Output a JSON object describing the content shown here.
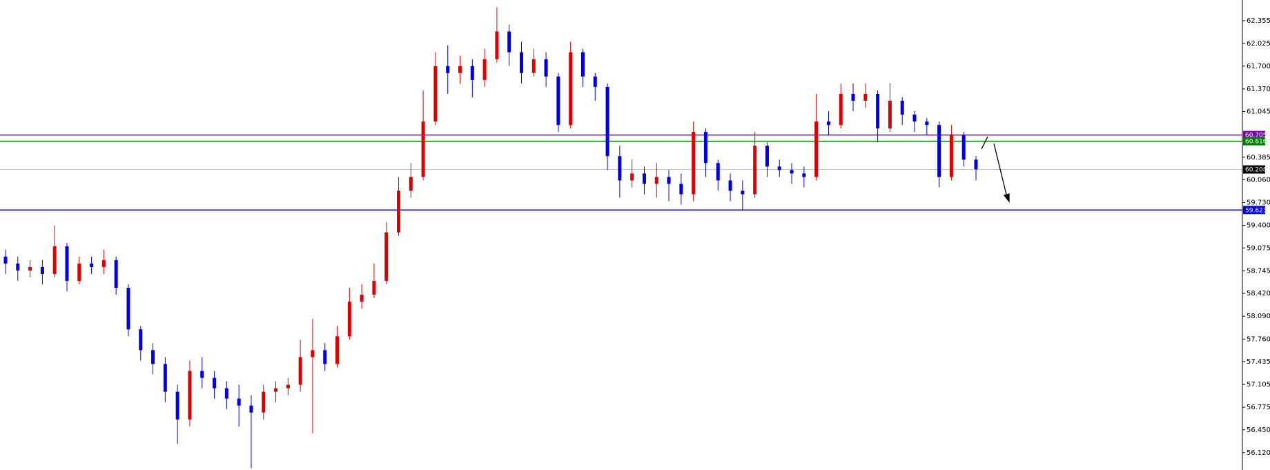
{
  "chart_data": {
    "type": "candlestick",
    "up_color": "#e00000",
    "down_color": "#0000e6",
    "ylim": [
      55.87,
      62.654
    ],
    "yticks": [
      {
        "value": 62.355,
        "label": "62.355"
      },
      {
        "value": 62.025,
        "label": "62.025"
      },
      {
        "value": 61.7,
        "label": "61.700"
      },
      {
        "value": 61.37,
        "label": "61.370"
      },
      {
        "value": 61.045,
        "label": "61.045"
      },
      {
        "value": 60.385,
        "label": "60.385"
      },
      {
        "value": 60.06,
        "label": "60.060"
      },
      {
        "value": 59.73,
        "label": "59.730"
      },
      {
        "value": 59.4,
        "label": "59.400"
      },
      {
        "value": 59.075,
        "label": "59.075"
      },
      {
        "value": 58.745,
        "label": "58.745"
      },
      {
        "value": 58.42,
        "label": "58.420"
      },
      {
        "value": 58.09,
        "label": "58.090"
      },
      {
        "value": 57.76,
        "label": "57.760"
      },
      {
        "value": 57.435,
        "label": "57.435"
      },
      {
        "value": 57.105,
        "label": "57.105"
      },
      {
        "value": 56.775,
        "label": "56.775"
      },
      {
        "value": 56.45,
        "label": "56.450"
      },
      {
        "value": 56.12,
        "label": "56.120"
      }
    ],
    "levels": [
      {
        "value": 60.705,
        "color": "#8000c0"
      },
      {
        "value": 60.616,
        "color": "#008000"
      },
      {
        "value": 60.208,
        "color": "#c0c0c0",
        "label_color": "#000000"
      },
      {
        "value": 59.623,
        "color": "#0000e6"
      }
    ],
    "open": [
      58.95,
      58.85,
      58.75,
      58.8,
      58.7,
      59.1,
      58.6,
      58.85,
      58.8,
      58.9,
      58.5,
      57.9,
      57.6,
      57.4,
      57.0,
      56.6,
      57.3,
      57.2,
      57.05,
      56.9,
      56.8,
      56.7,
      57.0,
      57.05,
      57.1,
      57.5,
      57.6,
      57.4,
      57.8,
      58.3,
      58.4,
      58.6,
      59.3,
      59.9,
      60.1,
      60.9,
      61.7,
      61.6,
      61.7,
      61.5,
      61.8,
      62.2,
      61.9,
      61.6,
      61.8,
      61.55,
      60.85,
      61.9,
      61.55,
      61.4,
      60.4,
      60.05,
      60.15,
      60.0,
      60.1,
      60.0,
      59.85,
      60.75,
      60.3,
      60.05,
      59.9,
      59.85,
      60.55,
      60.25,
      60.2,
      60.15,
      60.1,
      60.9,
      60.85,
      61.3,
      61.2,
      61.3,
      60.8,
      61.2,
      61.0,
      60.9,
      60.85,
      60.1,
      60.7,
      60.35
    ],
    "high": [
      59.05,
      58.95,
      58.9,
      58.9,
      59.4,
      59.15,
      58.95,
      58.95,
      59.05,
      58.95,
      58.55,
      57.95,
      57.7,
      57.5,
      57.1,
      57.45,
      57.5,
      57.3,
      57.15,
      57.1,
      56.95,
      57.1,
      57.15,
      57.2,
      57.75,
      58.05,
      57.7,
      57.95,
      58.5,
      58.55,
      58.85,
      59.45,
      60.1,
      60.3,
      61.35,
      61.9,
      62.0,
      61.85,
      61.8,
      61.95,
      62.55,
      62.3,
      62.05,
      61.95,
      61.9,
      61.6,
      62.05,
      61.95,
      61.6,
      61.45,
      60.55,
      60.35,
      60.25,
      60.3,
      60.2,
      60.15,
      60.9,
      60.8,
      60.35,
      60.15,
      60.05,
      60.75,
      60.6,
      60.35,
      60.3,
      60.25,
      61.3,
      61.05,
      61.45,
      61.45,
      61.45,
      61.35,
      61.45,
      61.25,
      61.05,
      60.95,
      60.9,
      60.85,
      60.75,
      60.4
    ],
    "low": [
      58.7,
      58.6,
      58.65,
      58.55,
      58.65,
      58.45,
      58.55,
      58.7,
      58.7,
      58.4,
      57.8,
      57.45,
      57.25,
      56.85,
      56.25,
      56.5,
      57.05,
      56.9,
      56.75,
      56.5,
      55.9,
      56.6,
      56.85,
      56.95,
      57.0,
      56.4,
      57.3,
      57.35,
      57.75,
      58.2,
      58.35,
      58.55,
      59.25,
      59.8,
      60.05,
      60.85,
      61.3,
      61.45,
      61.25,
      61.4,
      61.75,
      61.7,
      61.45,
      61.55,
      61.4,
      60.75,
      60.8,
      61.4,
      61.2,
      60.2,
      59.8,
      59.95,
      59.85,
      59.8,
      59.75,
      59.7,
      59.75,
      60.1,
      59.9,
      59.75,
      59.62,
      59.8,
      60.1,
      60.1,
      60.0,
      59.95,
      60.05,
      60.7,
      60.8,
      61.05,
      61.1,
      60.6,
      60.75,
      60.85,
      60.75,
      60.7,
      59.95,
      60.05,
      60.25,
      60.05
    ],
    "close": [
      58.85,
      58.75,
      58.8,
      58.7,
      59.1,
      58.6,
      58.85,
      58.8,
      58.9,
      58.5,
      57.9,
      57.6,
      57.4,
      57.0,
      56.6,
      57.3,
      57.2,
      57.05,
      56.9,
      56.8,
      56.7,
      57.0,
      57.05,
      57.1,
      57.5,
      57.6,
      57.4,
      57.8,
      58.3,
      58.4,
      58.6,
      59.3,
      59.9,
      60.1,
      60.9,
      61.7,
      61.6,
      61.7,
      61.5,
      61.8,
      62.2,
      61.9,
      61.6,
      61.8,
      61.55,
      60.85,
      61.9,
      61.55,
      61.4,
      60.4,
      60.05,
      60.15,
      60.0,
      60.1,
      60.0,
      59.85,
      60.75,
      60.3,
      60.05,
      59.9,
      59.85,
      60.55,
      60.25,
      60.2,
      60.15,
      60.1,
      60.9,
      60.85,
      61.3,
      61.2,
      61.3,
      60.8,
      61.2,
      61.0,
      60.9,
      60.85,
      60.1,
      60.7,
      60.35,
      60.21
    ]
  }
}
